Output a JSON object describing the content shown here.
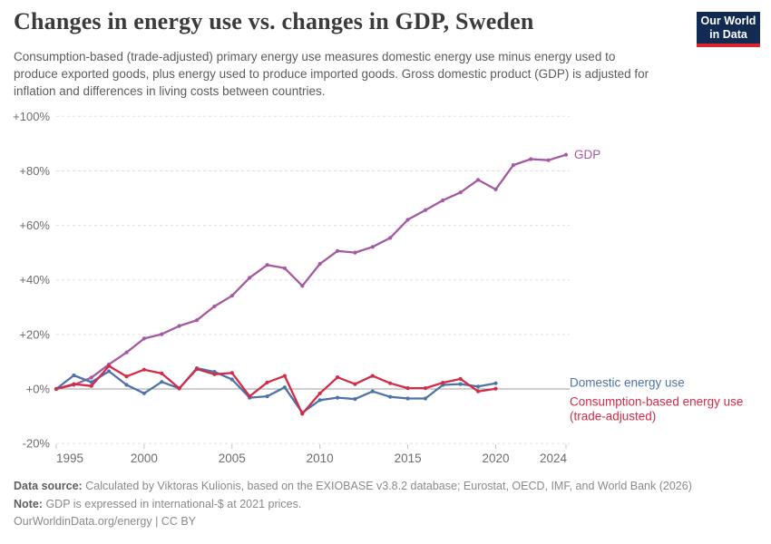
{
  "header": {
    "title": "Changes in energy use vs. changes in GDP, Sweden",
    "subtitle": "Consumption-based (trade-adjusted) primary energy use measures domestic energy use minus energy used to produce exported goods, plus energy used to produce imported goods. Gross domestic product (GDP) is adjusted for inflation and differences in living costs between countries.",
    "logo": {
      "line1": "Our World",
      "line2": "in Data",
      "bg_color": "#122b52",
      "accent_color": "#d8262c"
    }
  },
  "chart_data": {
    "type": "line",
    "title": "Changes in energy use vs. changes in GDP, Sweden",
    "xlabel": "",
    "ylabel": "",
    "xlim": [
      1995,
      2024
    ],
    "ylim": [
      -20,
      100
    ],
    "grid": "horizontal-dashed",
    "legend_position": "right-of-line-ends",
    "x": [
      1995,
      1996,
      1997,
      1998,
      1999,
      2000,
      2001,
      2002,
      2003,
      2004,
      2005,
      2006,
      2007,
      2008,
      2009,
      2010,
      2011,
      2012,
      2013,
      2014,
      2015,
      2016,
      2017,
      2018,
      2019,
      2020,
      2021,
      2022,
      2023,
      2024
    ],
    "series": [
      {
        "id": "gdp",
        "name": "GDP",
        "label_lines": [
          "GDP"
        ],
        "color": "#a559a0",
        "values": [
          0,
          1.5,
          4.2,
          9.0,
          13.4,
          18.5,
          20.1,
          23.1,
          25.2,
          30.3,
          34.2,
          40.8,
          45.5,
          44.3,
          37.8,
          45.9,
          50.6,
          50.0,
          52.1,
          55.4,
          62.1,
          65.6,
          69.2,
          72.1,
          76.7,
          73.2,
          82.1,
          84.3,
          83.9,
          85.9
        ]
      },
      {
        "id": "domestic-energy-use",
        "name": "Domestic energy use",
        "label_lines": [
          "Domestic energy use"
        ],
        "color": "#4e73a8",
        "values": [
          0,
          5.0,
          2.5,
          6.5,
          1.5,
          -1.6,
          2.6,
          0.2,
          7.6,
          6.3,
          3.5,
          -3.2,
          -2.7,
          0.6,
          -8.7,
          -4.1,
          -3.2,
          -3.7,
          -0.9,
          -2.9,
          -3.5,
          -3.5,
          1.5,
          1.8,
          0.9,
          2.1
        ]
      },
      {
        "id": "consumption-based-energy-use",
        "name": "Consumption-based energy use (trade-adjusted)",
        "label_lines": [
          "Consumption-based energy use",
          "(trade-adjusted)"
        ],
        "color": "#d22c48",
        "values": [
          0,
          1.8,
          1.1,
          8.4,
          4.6,
          7.1,
          5.7,
          0.2,
          7.3,
          5.4,
          5.9,
          -2.7,
          2.4,
          4.8,
          -9.1,
          -1.6,
          4.3,
          1.8,
          4.8,
          2.1,
          0.3,
          0.3,
          2.3,
          3.7,
          -0.9,
          0.1
        ]
      }
    ],
    "yticks": [
      {
        "label": "+100%",
        "value": 100
      },
      {
        "label": "+80%",
        "value": 80
      },
      {
        "label": "+60%",
        "value": 60
      },
      {
        "label": "+40%",
        "value": 40
      },
      {
        "label": "+20%",
        "value": 20
      },
      {
        "label": "+0%",
        "value": 0
      },
      {
        "label": "-20%",
        "value": -20
      }
    ],
    "xticks": [
      {
        "label": "1995",
        "value": 1995
      },
      {
        "label": "2000",
        "value": 2000
      },
      {
        "label": "2005",
        "value": 2005
      },
      {
        "label": "2010",
        "value": 2010
      },
      {
        "label": "2015",
        "value": 2015
      },
      {
        "label": "2020",
        "value": 2020
      },
      {
        "label": "2024",
        "value": 2024
      }
    ]
  },
  "footer": {
    "source_label": "Data source:",
    "source_text": "Calculated by Viktoras Kulionis, based on the EXIOBASE v3.8.2 database; Eurostat, OECD, IMF, and World Bank (2026)",
    "note_label": "Note:",
    "note_text": "GDP is expressed in international-$ at 2021 prices.",
    "attribution": "OurWorldinData.org/energy | CC BY"
  }
}
